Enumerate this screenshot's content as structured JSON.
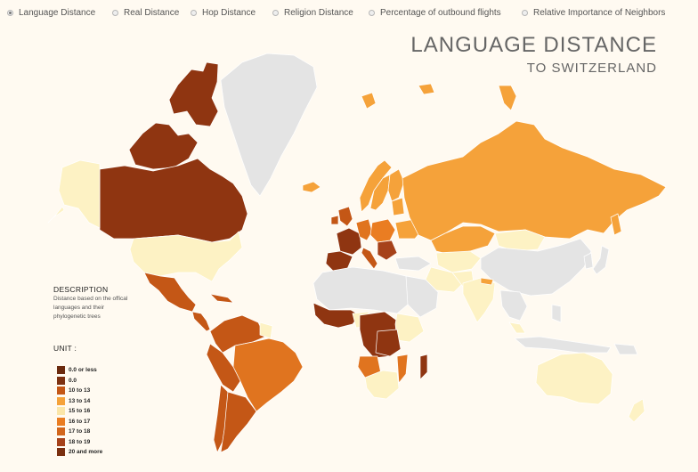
{
  "radio_options": [
    {
      "label": "Language Distance",
      "selected": true
    },
    {
      "label": "Real Distance",
      "selected": false
    },
    {
      "label": "Hop Distance",
      "selected": false
    },
    {
      "label": "Religion Distance",
      "selected": false
    },
    {
      "label": "Percentage of outbound flights",
      "selected": false
    },
    {
      "label": "Relative Importance of Neighbors",
      "selected": false
    }
  ],
  "title": {
    "main": "LANGUAGE DISTANCE",
    "sub": "TO SWITZERLAND"
  },
  "description": {
    "heading": "DESCRIPTION",
    "text": "Distance based on the offical languages and their phylogenetic trees"
  },
  "legend": {
    "heading": "UNIT :",
    "items": [
      {
        "label": "0.0 or less",
        "color": "#6b2a0e"
      },
      {
        "label": "0.0",
        "color": "#7d3111"
      },
      {
        "label": "10 to 13",
        "color": "#c45716"
      },
      {
        "label": "13 to 14",
        "color": "#f5a23a"
      },
      {
        "label": "15 to 16",
        "color": "#fbe6a8"
      },
      {
        "label": "16 to 17",
        "color": "#ea7d22"
      },
      {
        "label": "17 to 18",
        "color": "#d2661c"
      },
      {
        "label": "18 to 19",
        "color": "#a6421a"
      },
      {
        "label": "20 and more",
        "color": "#7a2f10"
      }
    ]
  },
  "colors": {
    "background": "#fffaf1",
    "no_data": "#e4e4e4",
    "darkest": "#8f3511",
    "orange": "#f5a23a",
    "pale": "#fdf2c4",
    "mid": "#e0741f"
  }
}
